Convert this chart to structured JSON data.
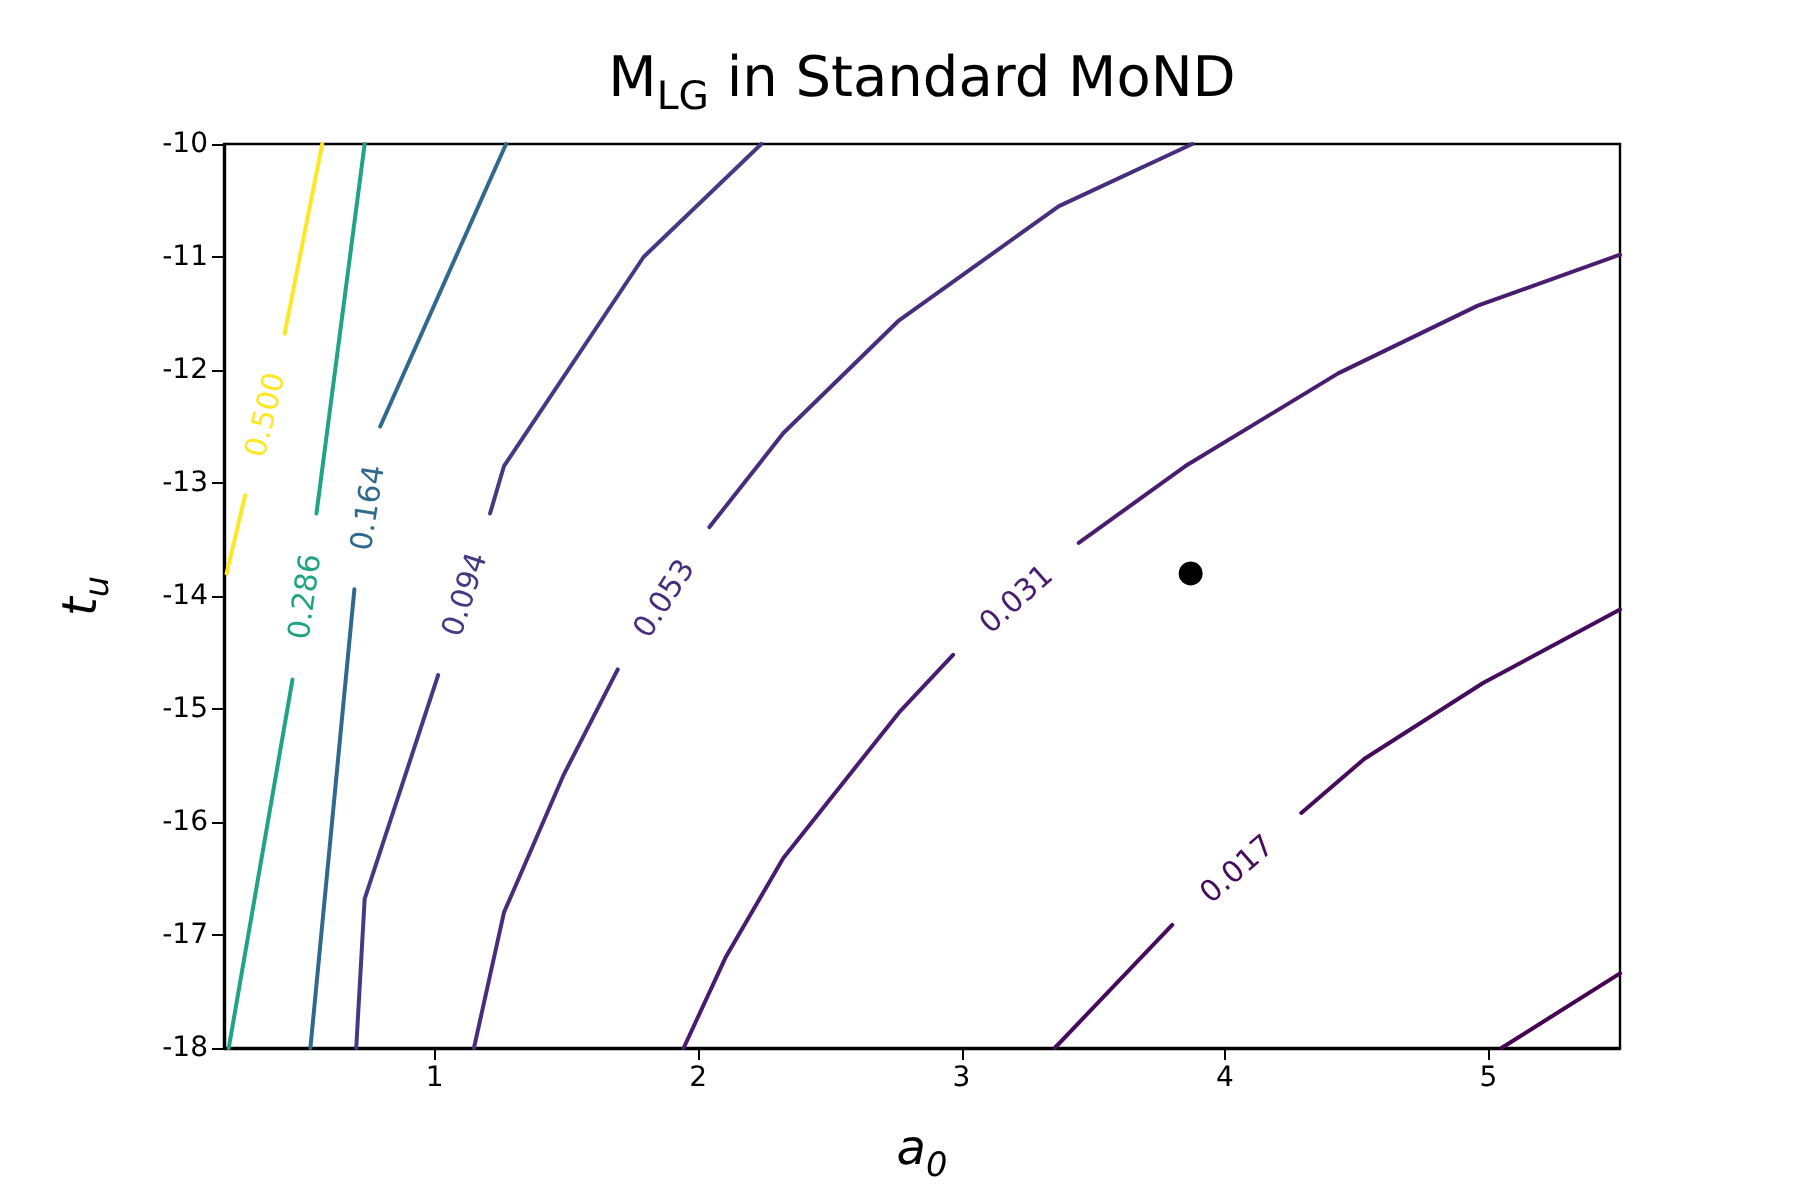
{
  "chart_data": {
    "type": "line",
    "title": "M$_{LG}$ in Standard MoND",
    "xlabel": "a$_{0}$",
    "ylabel": "t$_{u}$",
    "xlim": [
      0.2,
      5.5
    ],
    "xticks": [
      1,
      2,
      3,
      4,
      5
    ],
    "ylim": [
      -18,
      -10
    ],
    "yticks": [
      -18,
      -17,
      -16,
      -15,
      -14,
      -13,
      -12,
      -11,
      -10
    ],
    "grid": false,
    "marker": "none",
    "line_style": "solid",
    "series": [
      {
        "name": "0.500",
        "color": "#fde725",
        "x": [
          0.573,
          0.43,
          null,
          0.28,
          0.21
        ],
        "values": [
          -10,
          -11.68,
          null,
          -13.11,
          -13.8
        ]
      },
      {
        "name": "0.286",
        "color": "#21a386",
        "x": [
          0.734,
          0.551,
          null,
          0.46,
          0.218
        ],
        "values": [
          -10,
          -13.27,
          null,
          -14.74,
          -18
        ]
      },
      {
        "name": "0.164",
        "color": "#31688e",
        "x": [
          1.271,
          0.793,
          null,
          0.695,
          0.528
        ],
        "values": [
          -10,
          -12.5,
          null,
          -13.94,
          -18
        ]
      },
      {
        "name": "0.094",
        "color": "#443a83",
        "x": [
          2.24,
          1.793,
          1.263,
          1.21,
          null,
          1.013,
          0.734,
          0.702
        ],
        "values": [
          -10,
          -11,
          -12.85,
          -13.27,
          null,
          -14.7,
          -16.68,
          -18
        ]
      },
      {
        "name": "0.053",
        "color": "#472d7b",
        "x": [
          3.876,
          3.37,
          2.763,
          2.323,
          2.043,
          null,
          1.695,
          1.49,
          1.263,
          1.149
        ],
        "values": [
          -10,
          -10.55,
          -11.56,
          -12.56,
          -13.39,
          null,
          -14.65,
          -15.58,
          -16.8,
          -18
        ]
      },
      {
        "name": "0.031",
        "color": "#481c6e",
        "x": [
          5.5,
          4.96,
          4.43,
          3.85,
          3.445,
          null,
          2.968,
          2.763,
          2.323,
          2.104,
          1.945
        ],
        "values": [
          -10.98,
          -11.43,
          -12.03,
          -12.85,
          -13.53,
          null,
          -14.52,
          -15.03,
          -16.32,
          -17.2,
          -18
        ]
      },
      {
        "name": "0.017",
        "color": "#450b5c",
        "x": [
          5.5,
          4.98,
          4.53,
          4.29,
          null,
          3.8,
          3.354
        ],
        "values": [
          -14.12,
          -14.77,
          -15.44,
          -15.92,
          null,
          -16.91,
          -18
        ]
      },
      {
        "color": "#440154",
        "x": [
          5.5,
          5.05
        ],
        "values": [
          -17.34,
          -18
        ]
      },
      {
        "type": "scatter",
        "marker": "circle",
        "color": "#000000",
        "x": [
          3.87
        ],
        "values": [
          -13.8
        ]
      }
    ]
  }
}
